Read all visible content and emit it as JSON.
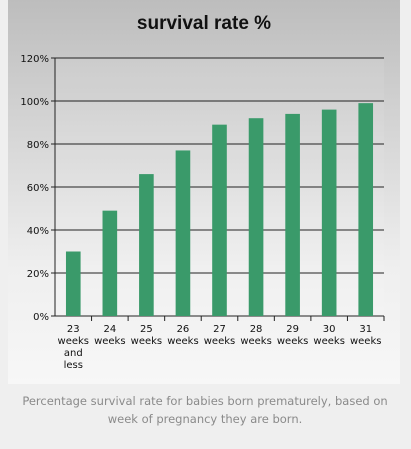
{
  "chart_data": {
    "type": "bar",
    "title": "survival rate %",
    "categories": [
      [
        "23",
        "weeks",
        "and",
        "less"
      ],
      [
        "24",
        "weeks"
      ],
      [
        "25",
        "weeks"
      ],
      [
        "26",
        "weeks"
      ],
      [
        "27",
        "weeks"
      ],
      [
        "28",
        "weeks"
      ],
      [
        "29",
        "weeks"
      ],
      [
        "30",
        "weeks"
      ],
      [
        "31",
        "weeks"
      ]
    ],
    "values": [
      30,
      49,
      66,
      77,
      89,
      92,
      94,
      96,
      99
    ],
    "ylim": [
      0,
      120
    ],
    "yticks": [
      "0%",
      "20%",
      "40%",
      "60%",
      "80%",
      "100%",
      "120%"
    ],
    "xlabel": "",
    "ylabel": "",
    "grid": true,
    "colors": {
      "bar": "#3a9a6a",
      "grid": "#222222"
    }
  },
  "caption": "Percentage survival rate for babies born prematurely, based on week of pregnancy they are born."
}
